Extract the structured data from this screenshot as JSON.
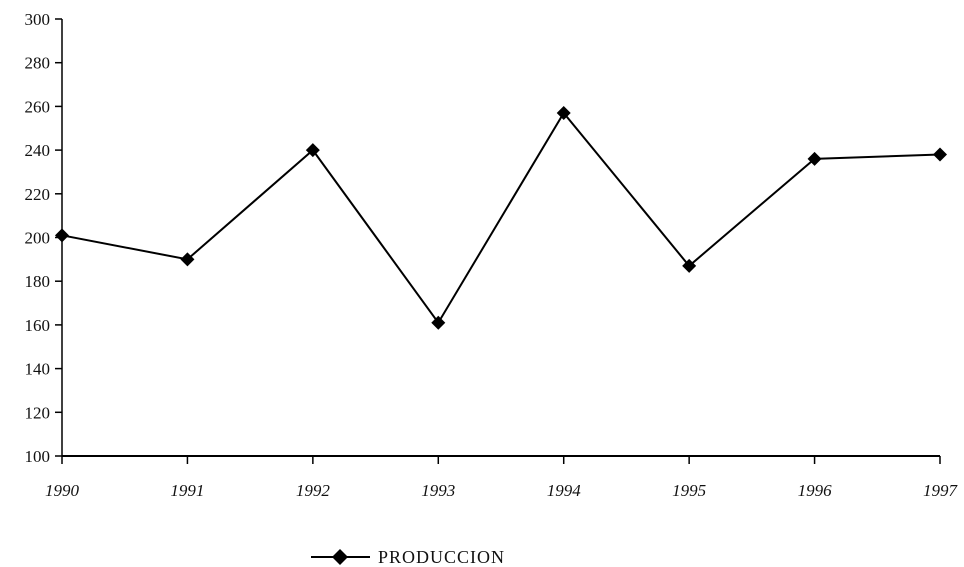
{
  "chart_data": {
    "type": "line",
    "title": "",
    "xlabel": "",
    "ylabel": "",
    "categories": [
      "1990",
      "1991",
      "1992",
      "1993",
      "1994",
      "1995",
      "1996",
      "1997"
    ],
    "series": [
      {
        "name": "PRODUCCION",
        "values": [
          201,
          190,
          240,
          161,
          257,
          187,
          236,
          238
        ],
        "color": "#000000",
        "marker": "diamond"
      }
    ],
    "ylim": [
      100,
      300
    ],
    "yticks": [
      "100",
      "120",
      "140",
      "160",
      "180",
      "200",
      "220",
      "240",
      "260",
      "280",
      "300"
    ],
    "grid": false,
    "legend_position": "bottom-center"
  }
}
